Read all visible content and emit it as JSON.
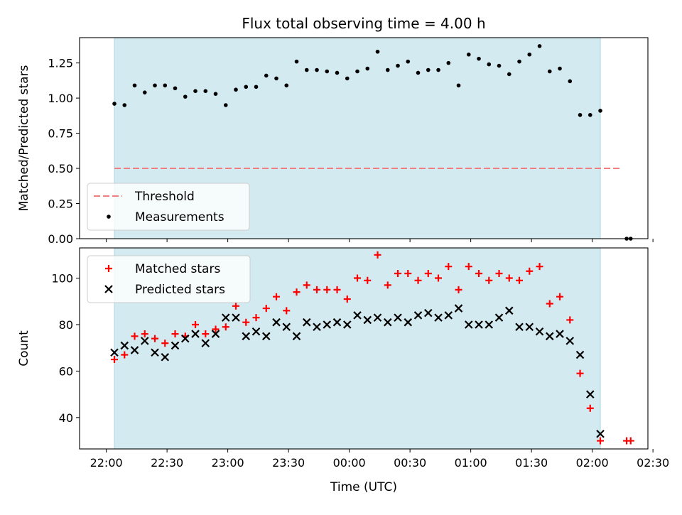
{
  "chart_data": {
    "type": "scatter",
    "title": "Flux total observing time = 4.00 h",
    "xlabel": "Time (UTC)",
    "x_ticks": [
      "22:00",
      "22:30",
      "23:00",
      "23:30",
      "00:00",
      "00:30",
      "01:00",
      "01:30",
      "02:00",
      "02:30"
    ],
    "observing_window": [
      "22:04",
      "02:04"
    ],
    "colors": {
      "band": "#d3eaf1",
      "threshold": "#f08080",
      "matched": "#ff0000",
      "predicted": "#000000",
      "measurement": "#000000"
    },
    "panels": [
      {
        "name": "ratio",
        "ylabel": "Matched/Predicted stars",
        "ylim": [
          0,
          1.43
        ],
        "y_ticks": [
          "0.00",
          "0.25",
          "0.50",
          "0.75",
          "1.00",
          "1.25"
        ],
        "legend": {
          "position": "lower-left",
          "entries": [
            "Threshold",
            "Measurements"
          ]
        },
        "threshold": {
          "name": "Threshold",
          "y": 0.5,
          "x_range": [
            "22:04",
            "02:14"
          ]
        },
        "series": [
          {
            "name": "Measurements",
            "marker": "dot",
            "points": [
              [
                "22:04",
                0.96
              ],
              [
                "22:09",
                0.95
              ],
              [
                "22:14",
                1.09
              ],
              [
                "22:19",
                1.04
              ],
              [
                "22:24",
                1.09
              ],
              [
                "22:29",
                1.09
              ],
              [
                "22:34",
                1.07
              ],
              [
                "22:39",
                1.01
              ],
              [
                "22:44",
                1.05
              ],
              [
                "22:49",
                1.05
              ],
              [
                "22:54",
                1.03
              ],
              [
                "22:59",
                0.95
              ],
              [
                "23:04",
                1.06
              ],
              [
                "23:09",
                1.08
              ],
              [
                "23:14",
                1.08
              ],
              [
                "23:19",
                1.16
              ],
              [
                "23:24",
                1.14
              ],
              [
                "23:29",
                1.09
              ],
              [
                "23:34",
                1.26
              ],
              [
                "23:39",
                1.2
              ],
              [
                "23:44",
                1.2
              ],
              [
                "23:49",
                1.19
              ],
              [
                "23:54",
                1.18
              ],
              [
                "23:59",
                1.14
              ],
              [
                "00:04",
                1.19
              ],
              [
                "00:09",
                1.21
              ],
              [
                "00:14",
                1.33
              ],
              [
                "00:19",
                1.2
              ],
              [
                "00:24",
                1.23
              ],
              [
                "00:29",
                1.26
              ],
              [
                "00:34",
                1.18
              ],
              [
                "00:39",
                1.2
              ],
              [
                "00:44",
                1.2
              ],
              [
                "00:49",
                1.25
              ],
              [
                "00:54",
                1.09
              ],
              [
                "00:59",
                1.31
              ],
              [
                "01:04",
                1.28
              ],
              [
                "01:09",
                1.24
              ],
              [
                "01:14",
                1.23
              ],
              [
                "01:19",
                1.17
              ],
              [
                "01:24",
                1.26
              ],
              [
                "01:29",
                1.31
              ],
              [
                "01:34",
                1.37
              ],
              [
                "01:39",
                1.19
              ],
              [
                "01:44",
                1.21
              ],
              [
                "01:49",
                1.12
              ],
              [
                "01:54",
                0.88
              ],
              [
                "01:59",
                0.88
              ],
              [
                "02:04",
                0.91
              ],
              [
                "02:17",
                0.0
              ],
              [
                "02:19",
                0.0
              ]
            ]
          }
        ]
      },
      {
        "name": "counts",
        "ylabel": "Count",
        "ylim": [
          26.5,
          113
        ],
        "y_ticks": [
          "40",
          "60",
          "80",
          "100"
        ],
        "legend": {
          "position": "upper-left",
          "entries": [
            "Matched stars",
            "Predicted stars"
          ]
        },
        "series": [
          {
            "name": "Matched stars",
            "marker": "plus",
            "points": [
              [
                "22:04",
                65
              ],
              [
                "22:09",
                67
              ],
              [
                "22:14",
                75
              ],
              [
                "22:19",
                76
              ],
              [
                "22:24",
                74
              ],
              [
                "22:29",
                72
              ],
              [
                "22:34",
                76
              ],
              [
                "22:39",
                75
              ],
              [
                "22:44",
                80
              ],
              [
                "22:49",
                76
              ],
              [
                "22:54",
                78
              ],
              [
                "22:59",
                79
              ],
              [
                "23:04",
                88
              ],
              [
                "23:09",
                81
              ],
              [
                "23:14",
                83
              ],
              [
                "23:19",
                87
              ],
              [
                "23:24",
                92
              ],
              [
                "23:29",
                86
              ],
              [
                "23:34",
                94
              ],
              [
                "23:39",
                97
              ],
              [
                "23:44",
                95
              ],
              [
                "23:49",
                95
              ],
              [
                "23:54",
                95
              ],
              [
                "23:59",
                91
              ],
              [
                "00:04",
                100
              ],
              [
                "00:09",
                99
              ],
              [
                "00:14",
                110
              ],
              [
                "00:19",
                97
              ],
              [
                "00:24",
                102
              ],
              [
                "00:29",
                102
              ],
              [
                "00:34",
                99
              ],
              [
                "00:39",
                102
              ],
              [
                "00:44",
                100
              ],
              [
                "00:49",
                105
              ],
              [
                "00:54",
                95
              ],
              [
                "00:59",
                105
              ],
              [
                "01:04",
                102
              ],
              [
                "01:09",
                99
              ],
              [
                "01:14",
                102
              ],
              [
                "01:19",
                100
              ],
              [
                "01:24",
                99
              ],
              [
                "01:29",
                103
              ],
              [
                "01:34",
                105
              ],
              [
                "01:39",
                89
              ],
              [
                "01:44",
                92
              ],
              [
                "01:49",
                82
              ],
              [
                "01:54",
                59
              ],
              [
                "01:59",
                44
              ],
              [
                "02:04",
                30
              ],
              [
                "02:17",
                30
              ],
              [
                "02:19",
                30
              ]
            ]
          },
          {
            "name": "Predicted stars",
            "marker": "x",
            "points": [
              [
                "22:04",
                68
              ],
              [
                "22:09",
                71
              ],
              [
                "22:14",
                69
              ],
              [
                "22:19",
                73
              ],
              [
                "22:24",
                68
              ],
              [
                "22:29",
                66
              ],
              [
                "22:34",
                71
              ],
              [
                "22:39",
                74
              ],
              [
                "22:44",
                76
              ],
              [
                "22:49",
                72
              ],
              [
                "22:54",
                76
              ],
              [
                "22:59",
                83
              ],
              [
                "23:04",
                83
              ],
              [
                "23:09",
                75
              ],
              [
                "23:14",
                77
              ],
              [
                "23:19",
                75
              ],
              [
                "23:24",
                81
              ],
              [
                "23:29",
                79
              ],
              [
                "23:34",
                75
              ],
              [
                "23:39",
                81
              ],
              [
                "23:44",
                79
              ],
              [
                "23:49",
                80
              ],
              [
                "23:54",
                81
              ],
              [
                "23:59",
                80
              ],
              [
                "00:04",
                84
              ],
              [
                "00:09",
                82
              ],
              [
                "00:14",
                83
              ],
              [
                "00:19",
                81
              ],
              [
                "00:24",
                83
              ],
              [
                "00:29",
                81
              ],
              [
                "00:34",
                84
              ],
              [
                "00:39",
                85
              ],
              [
                "00:44",
                83
              ],
              [
                "00:49",
                84
              ],
              [
                "00:54",
                87
              ],
              [
                "00:59",
                80
              ],
              [
                "01:04",
                80
              ],
              [
                "01:09",
                80
              ],
              [
                "01:14",
                83
              ],
              [
                "01:19",
                86
              ],
              [
                "01:24",
                79
              ],
              [
                "01:29",
                79
              ],
              [
                "01:34",
                77
              ],
              [
                "01:39",
                75
              ],
              [
                "01:44",
                76
              ],
              [
                "01:49",
                73
              ],
              [
                "01:54",
                67
              ],
              [
                "01:59",
                50
              ],
              [
                "02:04",
                33
              ]
            ]
          }
        ]
      }
    ]
  }
}
